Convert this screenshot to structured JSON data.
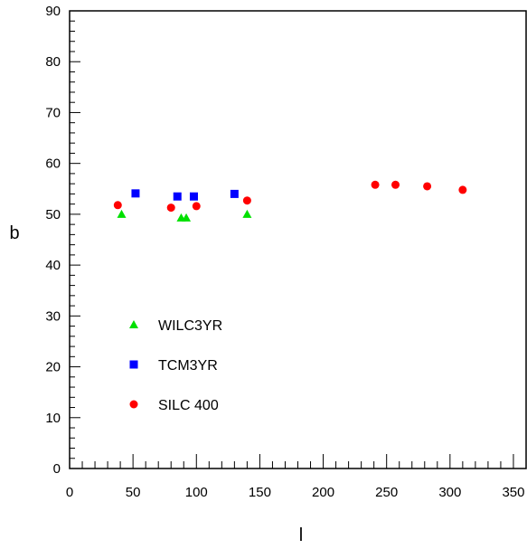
{
  "chart_data": {
    "type": "scatter",
    "xlabel": "l",
    "ylabel": "b",
    "xlim": [
      0,
      360
    ],
    "ylim": [
      0,
      90
    ],
    "xticks": [
      0,
      50,
      100,
      150,
      200,
      250,
      300,
      350
    ],
    "yticks": [
      0,
      10,
      20,
      30,
      40,
      50,
      60,
      70,
      80,
      90
    ],
    "xtick_labels": [
      "0",
      "50",
      "100",
      "150",
      "200",
      "250",
      "300",
      "350"
    ],
    "ytick_labels": [
      "0",
      "10",
      "20",
      "30",
      "40",
      "50",
      "60",
      "70",
      "80",
      "90"
    ],
    "grid": false,
    "legend_position": "lower-left",
    "series": [
      {
        "name": "WILC3YR",
        "marker": "triangle",
        "color": "#00e000",
        "points": [
          [
            41,
            50.0
          ],
          [
            88,
            49.3
          ],
          [
            92,
            49.3
          ],
          [
            140,
            50.0
          ]
        ]
      },
      {
        "name": "TCM3YR",
        "marker": "square",
        "color": "#0000ff",
        "points": [
          [
            52,
            54.1
          ],
          [
            85,
            53.5
          ],
          [
            98,
            53.5
          ],
          [
            130,
            54.0
          ]
        ]
      },
      {
        "name": "SILC 400",
        "marker": "circle",
        "color": "#ff0000",
        "points": [
          [
            38,
            51.8
          ],
          [
            80,
            51.3
          ],
          [
            100,
            51.6
          ],
          [
            140,
            52.7
          ],
          [
            241,
            55.8
          ],
          [
            257,
            55.8
          ],
          [
            282,
            55.5
          ],
          [
            310,
            54.8
          ]
        ]
      }
    ]
  }
}
